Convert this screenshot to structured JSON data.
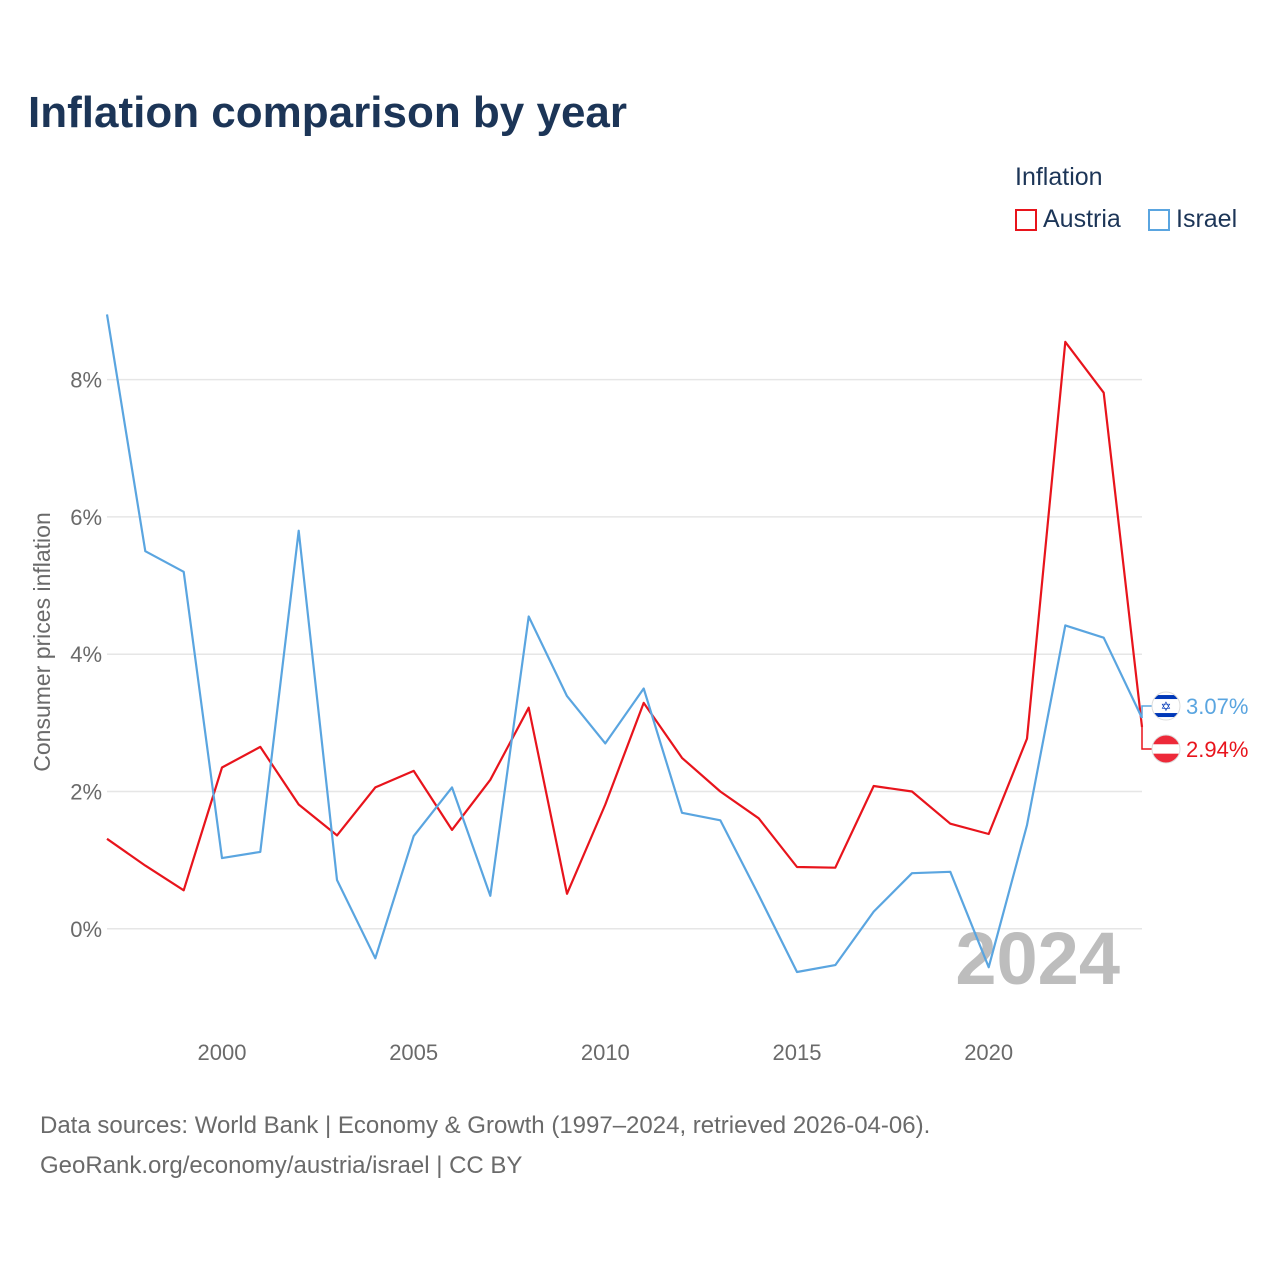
{
  "title": "Inflation comparison by year",
  "legend": {
    "title": "Inflation",
    "items": [
      {
        "label": "Austria",
        "color": "#e8141c"
      },
      {
        "label": "Israel",
        "color": "#5aa5e0"
      }
    ]
  },
  "footer": {
    "line1": "Data sources: World Bank | Economy & Growth (1997–2024, retrieved 2026-04-06).",
    "line2": "GeoRank.org/economy/austria/israel | CC BY"
  },
  "chart_data": {
    "type": "line",
    "title": "Inflation comparison by year",
    "xlabel": "",
    "ylabel": "Consumer prices inflation",
    "x": [
      1997,
      1998,
      1999,
      2000,
      2001,
      2002,
      2003,
      2004,
      2005,
      2006,
      2007,
      2008,
      2009,
      2010,
      2011,
      2012,
      2013,
      2014,
      2015,
      2016,
      2017,
      2018,
      2019,
      2020,
      2021,
      2022,
      2023,
      2024
    ],
    "xlim": [
      1997,
      2024
    ],
    "ylim": [
      -1.3,
      9.0
    ],
    "xticks": [
      2000,
      2005,
      2010,
      2015,
      2020
    ],
    "xtick_labels": [
      "2000",
      "2005",
      "2010",
      "2015",
      "2020"
    ],
    "yticks": [
      0,
      2,
      4,
      6,
      8
    ],
    "ytick_labels": [
      "0%",
      "2%",
      "4%",
      "6%",
      "8%"
    ],
    "grid": true,
    "legend_position": "top-right",
    "current_year_label": "2024",
    "series": [
      {
        "name": "Austria",
        "color": "#e8141c",
        "values": [
          1.31,
          0.92,
          0.56,
          2.35,
          2.65,
          1.81,
          1.36,
          2.06,
          2.3,
          1.44,
          2.17,
          3.22,
          0.51,
          1.81,
          3.29,
          2.49,
          2.0,
          1.61,
          0.9,
          0.89,
          2.08,
          2.0,
          1.53,
          1.38,
          2.77,
          8.55,
          7.81,
          2.94
        ],
        "end_label": "2.94%",
        "flag": "austria-flag"
      },
      {
        "name": "Israel",
        "color": "#5aa5e0",
        "values": [
          8.95,
          5.5,
          5.2,
          1.03,
          1.12,
          5.8,
          0.71,
          -0.43,
          1.35,
          2.06,
          0.48,
          4.55,
          3.39,
          2.7,
          3.5,
          1.69,
          1.58,
          0.49,
          -0.63,
          -0.53,
          0.25,
          0.81,
          0.83,
          -0.56,
          1.51,
          4.42,
          4.24,
          3.07
        ],
        "end_label": "3.07%",
        "flag": "israel-flag"
      }
    ]
  }
}
